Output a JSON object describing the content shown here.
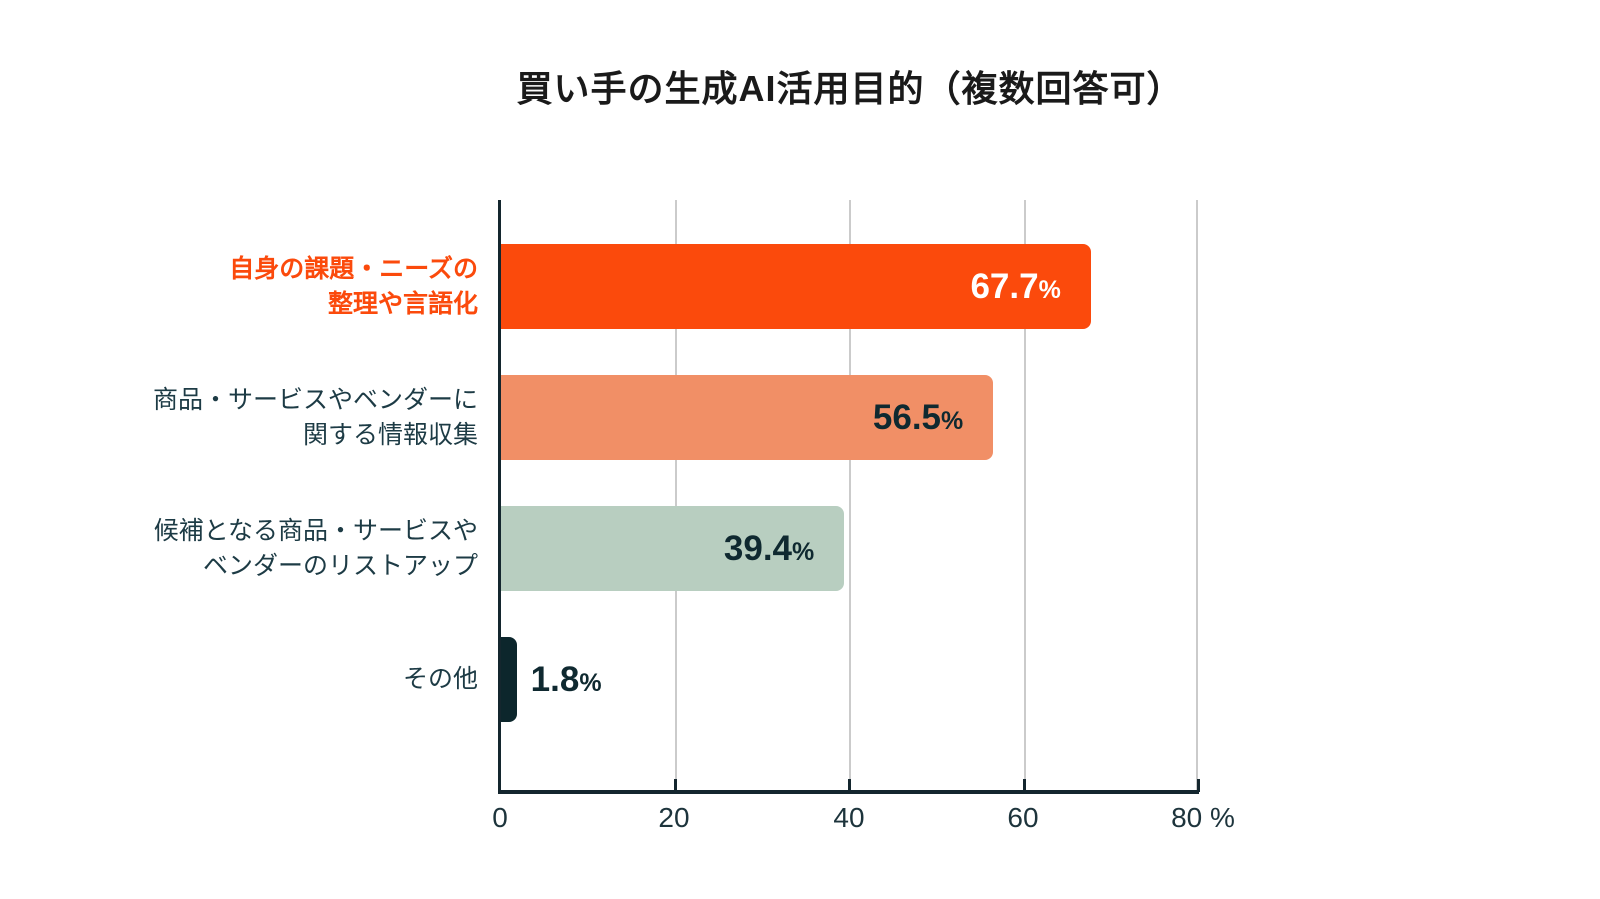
{
  "title": "買い手の生成AI活用目的（複数回答可）",
  "colors": {
    "title_text": "#1A1A1A",
    "axis_line": "#14262E",
    "gridline": "#CBCBCB",
    "tick_label_text": "#1D343C",
    "category_label_text": "#1D3B45",
    "accent_orange": "#FB4A0C"
  },
  "chart_data": {
    "type": "bar",
    "orientation": "horizontal",
    "title": "買い手の生成AI活用目的（複数回答可）",
    "categories": [
      "自身の課題・ニーズの整理や言語化",
      "商品・サービスやベンダーに関する情報収集",
      "候補となる商品・サービスやベンダーのリストアップ",
      "その他"
    ],
    "category_lines": [
      [
        "自身の課題・ニーズの",
        "整理や言語化"
      ],
      [
        "商品・サービスやベンダーに",
        "関する情報収集"
      ],
      [
        "候補となる商品・サービスや",
        "ベンダーのリストアップ"
      ],
      [
        "その他",
        ""
      ]
    ],
    "values": [
      67.7,
      56.5,
      39.4,
      1.8
    ],
    "value_labels": [
      "67.7",
      "56.5",
      "39.4",
      "1.8"
    ],
    "unit": "%",
    "xlim": [
      0,
      80
    ],
    "x_ticks": [
      0,
      20,
      40,
      60,
      80
    ],
    "x_tick_labels": [
      "0",
      "20",
      "40",
      "60",
      "80 %"
    ],
    "grid": "vertical-gridlines-at-20-40-60-80",
    "legend": "none",
    "bar_colors": [
      "#FB4A0C",
      "#F18F66",
      "#B8CEC0",
      "#0C262C"
    ],
    "value_label_colors": [
      "#FFFFFF",
      "#0F2930",
      "#0F2930",
      "#0F2930"
    ],
    "value_label_placement": [
      "inside",
      "inside",
      "inside",
      "outside"
    ],
    "category_label_colors": [
      "#FB4A0C",
      "#1D3B45",
      "#1D3B45",
      "#1D3B45"
    ]
  }
}
